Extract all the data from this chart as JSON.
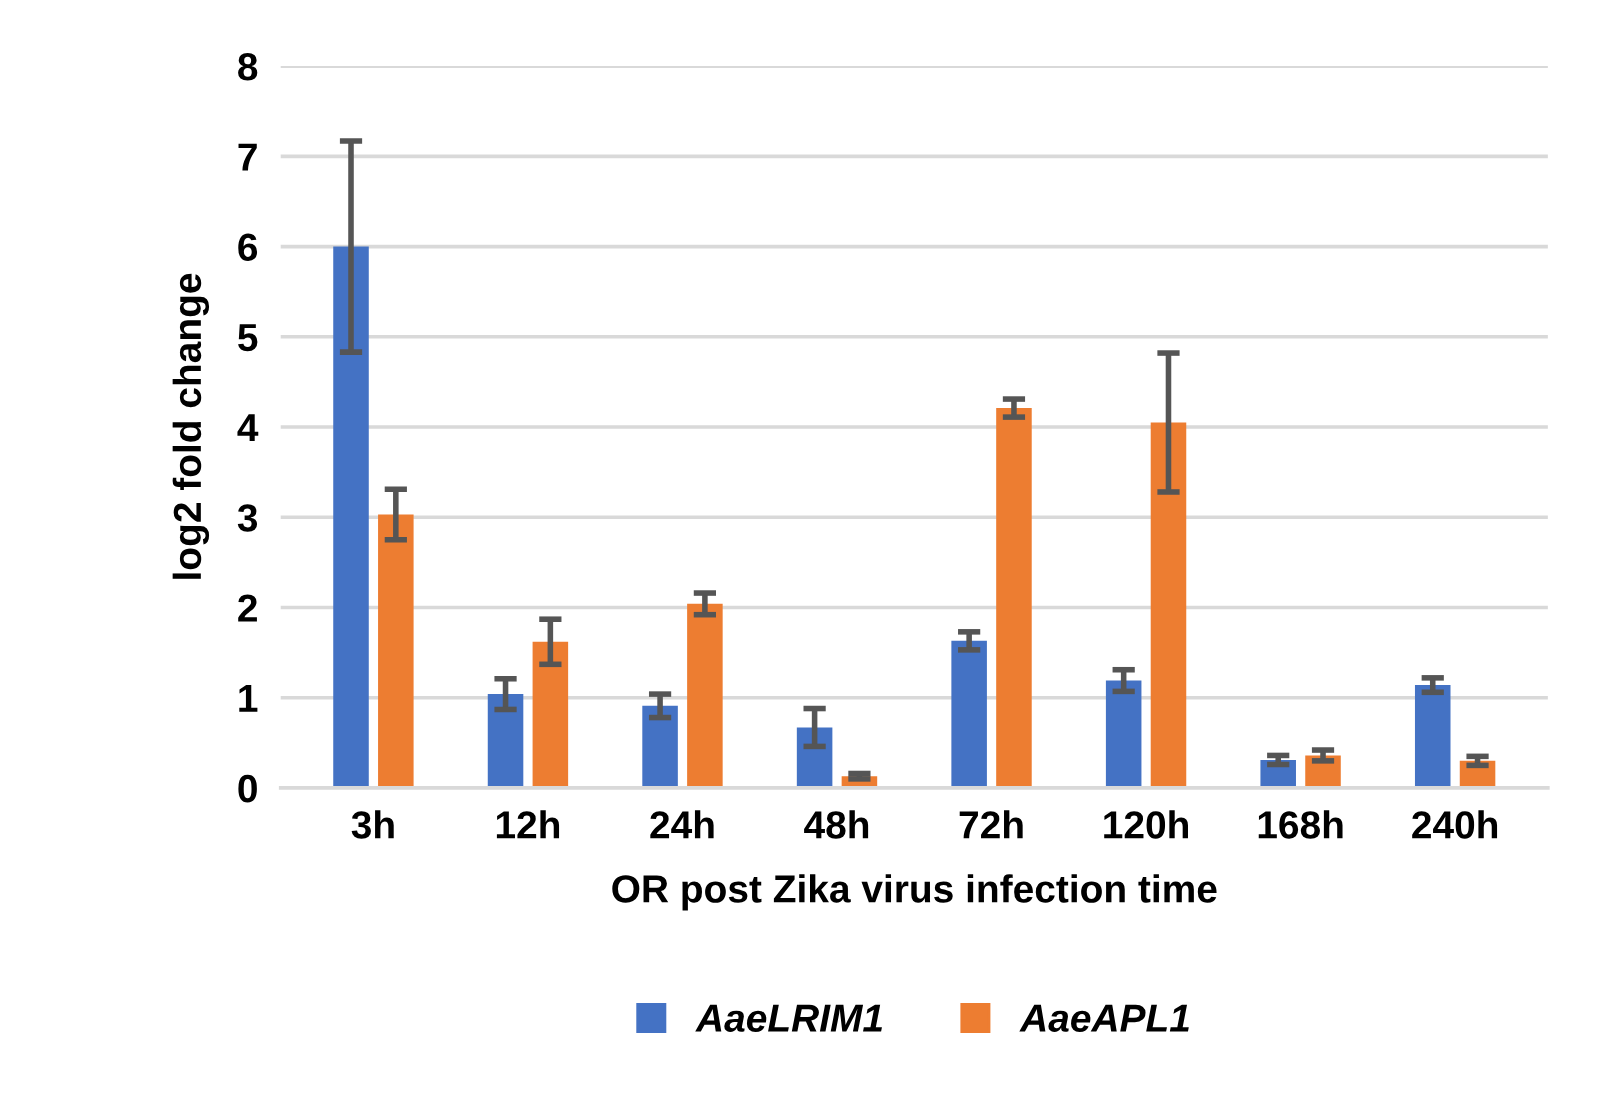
{
  "chart_data": {
    "type": "bar",
    "xlabel": "OR post Zika virus infection time",
    "ylabel": "log2 fold change",
    "categories": [
      "3h",
      "12h",
      "24h",
      "48h",
      "72h",
      "120h",
      "168h",
      "240h"
    ],
    "series": [
      {
        "name": "AaeLRIM1",
        "color": "#4472c4",
        "values": [
          6.0,
          1.04,
          0.91,
          0.67,
          1.63,
          1.19,
          0.31,
          1.14
        ],
        "errors": [
          1.17,
          0.17,
          0.13,
          0.21,
          0.1,
          0.12,
          0.05,
          0.08
        ]
      },
      {
        "name": "AaeAPL1",
        "color": "#ed7d31",
        "values": [
          3.03,
          1.62,
          2.04,
          0.13,
          4.21,
          4.05,
          0.36,
          0.3
        ],
        "errors": [
          0.28,
          0.25,
          0.12,
          0.03,
          0.1,
          0.77,
          0.06,
          0.05
        ]
      }
    ],
    "ylim": [
      0,
      8
    ],
    "yticks": [
      0,
      1,
      2,
      3,
      4,
      5,
      6,
      7,
      8
    ],
    "grid": "y",
    "legend": "bottom"
  }
}
